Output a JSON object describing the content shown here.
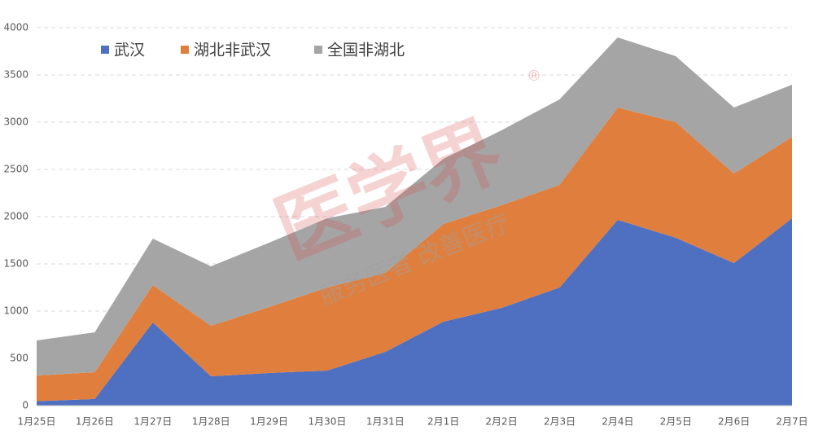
{
  "chart_data": {
    "type": "stacked_area",
    "categories": [
      "1月25日",
      "1月26日",
      "1月27日",
      "1月28日",
      "1月29日",
      "1月30日",
      "1月31日",
      "2月1日",
      "2月2日",
      "2月3日",
      "2月4日",
      "2月5日",
      "2月6日",
      "2月7日"
    ],
    "series": [
      {
        "name": "武汉",
        "color": "#4f70c0",
        "values": [
          46,
          70,
          880,
          310,
          345,
          371,
          569,
          888,
          1034,
          1250,
          1966,
          1776,
          1509,
          1983
        ]
      },
      {
        "name": "湖北非武汉",
        "color": "#e07f3d",
        "values": [
          273,
          283,
          396,
          535,
          698,
          879,
          836,
          1034,
          1087,
          1086,
          1189,
          1224,
          948,
          862
        ]
      },
      {
        "name": "全国非湖北",
        "color": "#a5a5a5",
        "values": [
          371,
          423,
          491,
          629,
          681,
          733,
          698,
          690,
          793,
          905,
          742,
          698,
          698,
          552
        ]
      }
    ],
    "ylim": [
      0,
      4000
    ],
    "yticks": [
      0,
      500,
      1000,
      1500,
      2000,
      2500,
      3000,
      3500,
      4000
    ],
    "grid": true,
    "legend": "top-left",
    "watermark": [
      "医学界",
      "服务医者 改善医疗",
      "®"
    ]
  }
}
